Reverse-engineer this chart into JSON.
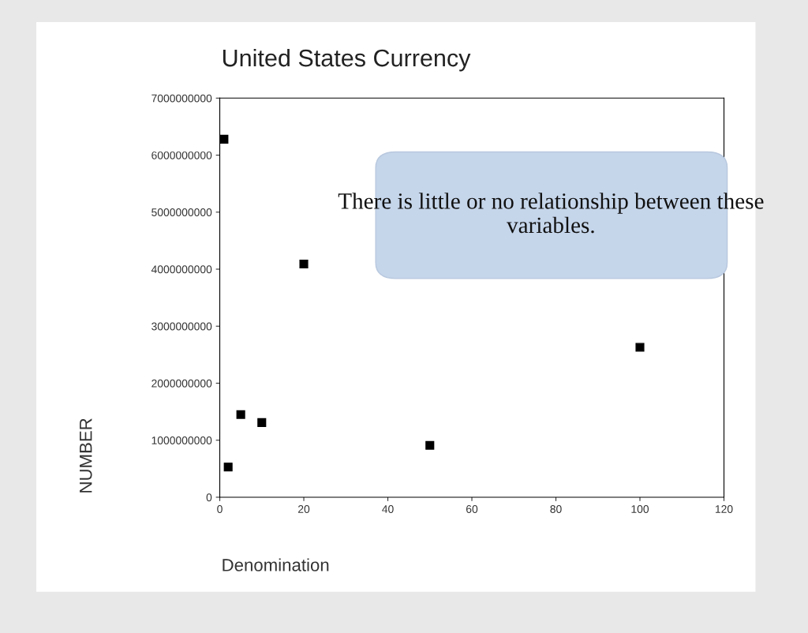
{
  "chart_data": {
    "type": "scatter",
    "title": "United States Currency",
    "xlabel": "Denomination",
    "ylabel": "NUMBER",
    "x": [
      1,
      2,
      5,
      10,
      20,
      50,
      100
    ],
    "series": [
      {
        "color": "#000000",
        "values": [
          6280000000,
          530000000,
          1450000000,
          1310000000,
          4090000000,
          910000000,
          2630000000
        ]
      }
    ],
    "xlim": [
      0,
      120
    ],
    "xticks": [
      0,
      20,
      40,
      60,
      80,
      100,
      120
    ],
    "ylim": [
      0,
      7000000000
    ],
    "yticks": [
      0,
      1000000000,
      2000000000,
      3000000000,
      4000000000,
      5000000000,
      6000000000,
      7000000000
    ],
    "marker": "square",
    "grid": false,
    "legend": false,
    "annotations": [
      "There is little or no relationship between these variables."
    ]
  }
}
